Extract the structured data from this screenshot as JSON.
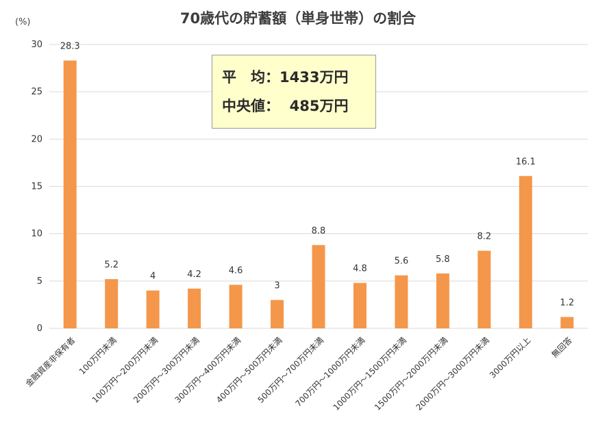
{
  "title": "70歳代の貯蓄額（単身世帯）の割合",
  "unit_label": "(%)",
  "summary": {
    "average": "平　均：1433万円",
    "median": "中央値：  485万円"
  },
  "colors": {
    "bar": "#f4974a",
    "summary_bg": "#ffffcc"
  },
  "chart_data": {
    "type": "bar",
    "title": "70歳代の貯蓄額（単身世帯）の割合",
    "ylabel": "(%)",
    "ylim": [
      0,
      30
    ],
    "yticks": [
      "0",
      "5",
      "10",
      "15",
      "20",
      "25",
      "30"
    ],
    "grid": true,
    "categories": [
      "金融資産非保有者",
      "100万円未満",
      "100万円～200万円未満",
      "200万円～300万円未満",
      "300万円～400万円未満",
      "400万円～500万円未満",
      "500万円～700万円未満",
      "700万円～1000万円未満",
      "1000万円～1500万円未満",
      "1500万円～2000万円未満",
      "2000万円～3000万円未満",
      "3000万円以上",
      "無回答"
    ],
    "values": [
      28.3,
      5.2,
      4,
      4.2,
      4.6,
      3,
      8.8,
      4.8,
      5.6,
      5.8,
      8.2,
      16.1,
      1.2
    ],
    "value_labels": [
      "28.3",
      "5.2",
      "4",
      "4.2",
      "4.6",
      "3",
      "8.8",
      "4.8",
      "5.6",
      "5.8",
      "8.2",
      "16.1",
      "1.2"
    ]
  }
}
